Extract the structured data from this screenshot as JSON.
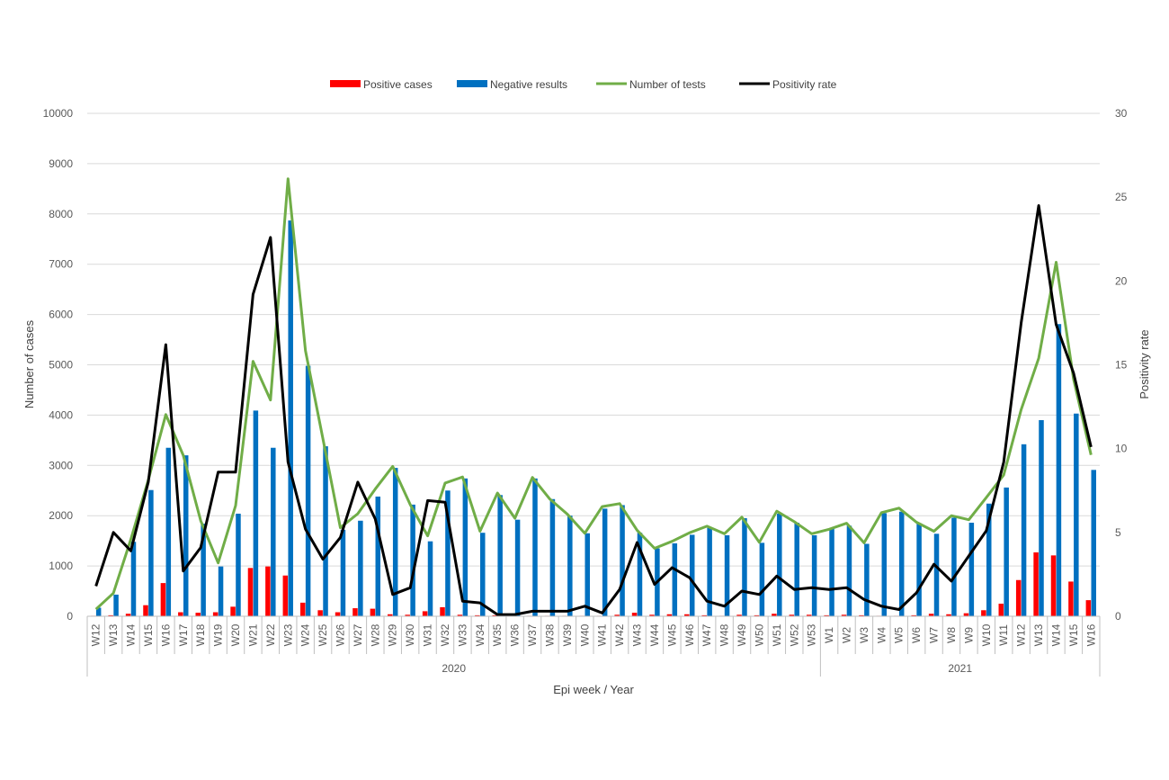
{
  "chart_data": {
    "type": "bar+line",
    "title": "",
    "legend": [
      {
        "label": "Positive cases",
        "kind": "bar",
        "color": "#ff0000"
      },
      {
        "label": "Negative results",
        "kind": "bar",
        "color": "#0070c0"
      },
      {
        "label": "Number of tests",
        "kind": "line",
        "color": "#70ad47"
      },
      {
        "label": "Positivity rate",
        "kind": "line",
        "color": "#000000"
      }
    ],
    "legend_position": "top-center",
    "xlabel": "Epi week / Year",
    "ylabel_left": "Number of cases",
    "ylabel_right": "Positivity rate",
    "ylim_left": [
      0,
      10000
    ],
    "yticks_left": [
      0,
      1000,
      2000,
      3000,
      4000,
      5000,
      6000,
      7000,
      8000,
      9000,
      10000
    ],
    "ylim_right": [
      0,
      30
    ],
    "yticks_right": [
      0,
      5,
      10,
      15,
      20,
      25,
      30
    ],
    "grid": true,
    "year_groups": [
      {
        "label": "2020",
        "count": 42
      },
      {
        "label": "2021",
        "count": 16
      }
    ],
    "categories": [
      "W12",
      "W13",
      "W14",
      "W15",
      "W16",
      "W17",
      "W18",
      "W19",
      "W20",
      "W21",
      "W22",
      "W23",
      "W24",
      "W25",
      "W26",
      "W27",
      "W28",
      "W29",
      "W30",
      "W31",
      "W32",
      "W33",
      "W34",
      "W35",
      "W36",
      "W37",
      "W38",
      "W39",
      "W40",
      "W41",
      "W42",
      "W43",
      "W44",
      "W45",
      "W46",
      "W47",
      "W48",
      "W49",
      "W50",
      "W51",
      "W52",
      "W53",
      "W1",
      "W2",
      "W3",
      "W4",
      "W5",
      "W6",
      "W7",
      "W8",
      "W9",
      "W10",
      "W11",
      "W12",
      "W13",
      "W14",
      "W15",
      "W16"
    ],
    "series": [
      {
        "name": "Positive cases",
        "axis": "left",
        "values": [
          10,
          20,
          50,
          220,
          660,
          80,
          70,
          80,
          190,
          960,
          990,
          810,
          270,
          120,
          80,
          160,
          150,
          40,
          30,
          100,
          180,
          30,
          20,
          20,
          10,
          10,
          10,
          10,
          10,
          10,
          30,
          70,
          30,
          40,
          40,
          20,
          10,
          30,
          20,
          50,
          30,
          30,
          20,
          30,
          20,
          10,
          10,
          20,
          50,
          40,
          60,
          120,
          250,
          720,
          1270,
          1210,
          690,
          320
        ]
      },
      {
        "name": "Negative results",
        "axis": "left",
        "values": [
          170,
          430,
          1480,
          2510,
          3350,
          3200,
          1840,
          990,
          2040,
          4090,
          3350,
          7870,
          4980,
          3380,
          1720,
          1900,
          2380,
          2950,
          2220,
          1490,
          2500,
          2740,
          1660,
          2410,
          1920,
          2740,
          2330,
          2000,
          1650,
          2140,
          2210,
          1660,
          1350,
          1450,
          1620,
          1760,
          1610,
          1950,
          1460,
          2040,
          1860,
          1610,
          1740,
          1800,
          1440,
          2050,
          2080,
          1850,
          1640,
          1960,
          1860,
          2240,
          2560,
          3420,
          3900,
          5810,
          4030,
          2910
        ]
      },
      {
        "name": "Number of tests",
        "axis": "left",
        "values": [
          140,
          460,
          1530,
          2710,
          4010,
          3200,
          1900,
          1060,
          2200,
          5070,
          4300,
          8700,
          5280,
          3530,
          1760,
          2040,
          2530,
          2980,
          2220,
          1600,
          2650,
          2770,
          1690,
          2450,
          1950,
          2760,
          2330,
          2030,
          1650,
          2180,
          2240,
          1710,
          1350,
          1490,
          1660,
          1790,
          1640,
          1970,
          1470,
          2090,
          1880,
          1640,
          1730,
          1850,
          1460,
          2060,
          2150,
          1870,
          1690,
          2000,
          1920,
          2360,
          2810,
          4110,
          5130,
          7040,
          4710,
          3210
        ]
      },
      {
        "name": "Positivity rate",
        "axis": "right",
        "values": [
          1.8,
          5.0,
          3.9,
          8.0,
          16.2,
          2.7,
          4.1,
          8.6,
          8.6,
          19.2,
          22.6,
          9.2,
          5.2,
          3.4,
          4.7,
          8.0,
          5.8,
          1.3,
          1.7,
          6.9,
          6.8,
          0.9,
          0.8,
          0.1,
          0.1,
          0.3,
          0.3,
          0.3,
          0.6,
          0.2,
          1.6,
          4.4,
          1.9,
          2.9,
          2.3,
          0.9,
          0.6,
          1.5,
          1.3,
          2.4,
          1.6,
          1.7,
          1.6,
          1.7,
          1.0,
          0.6,
          0.4,
          1.4,
          3.1,
          2.1,
          3.6,
          5.1,
          9.2,
          17.5,
          24.5,
          17.4,
          14.5,
          10.1
        ]
      }
    ]
  }
}
